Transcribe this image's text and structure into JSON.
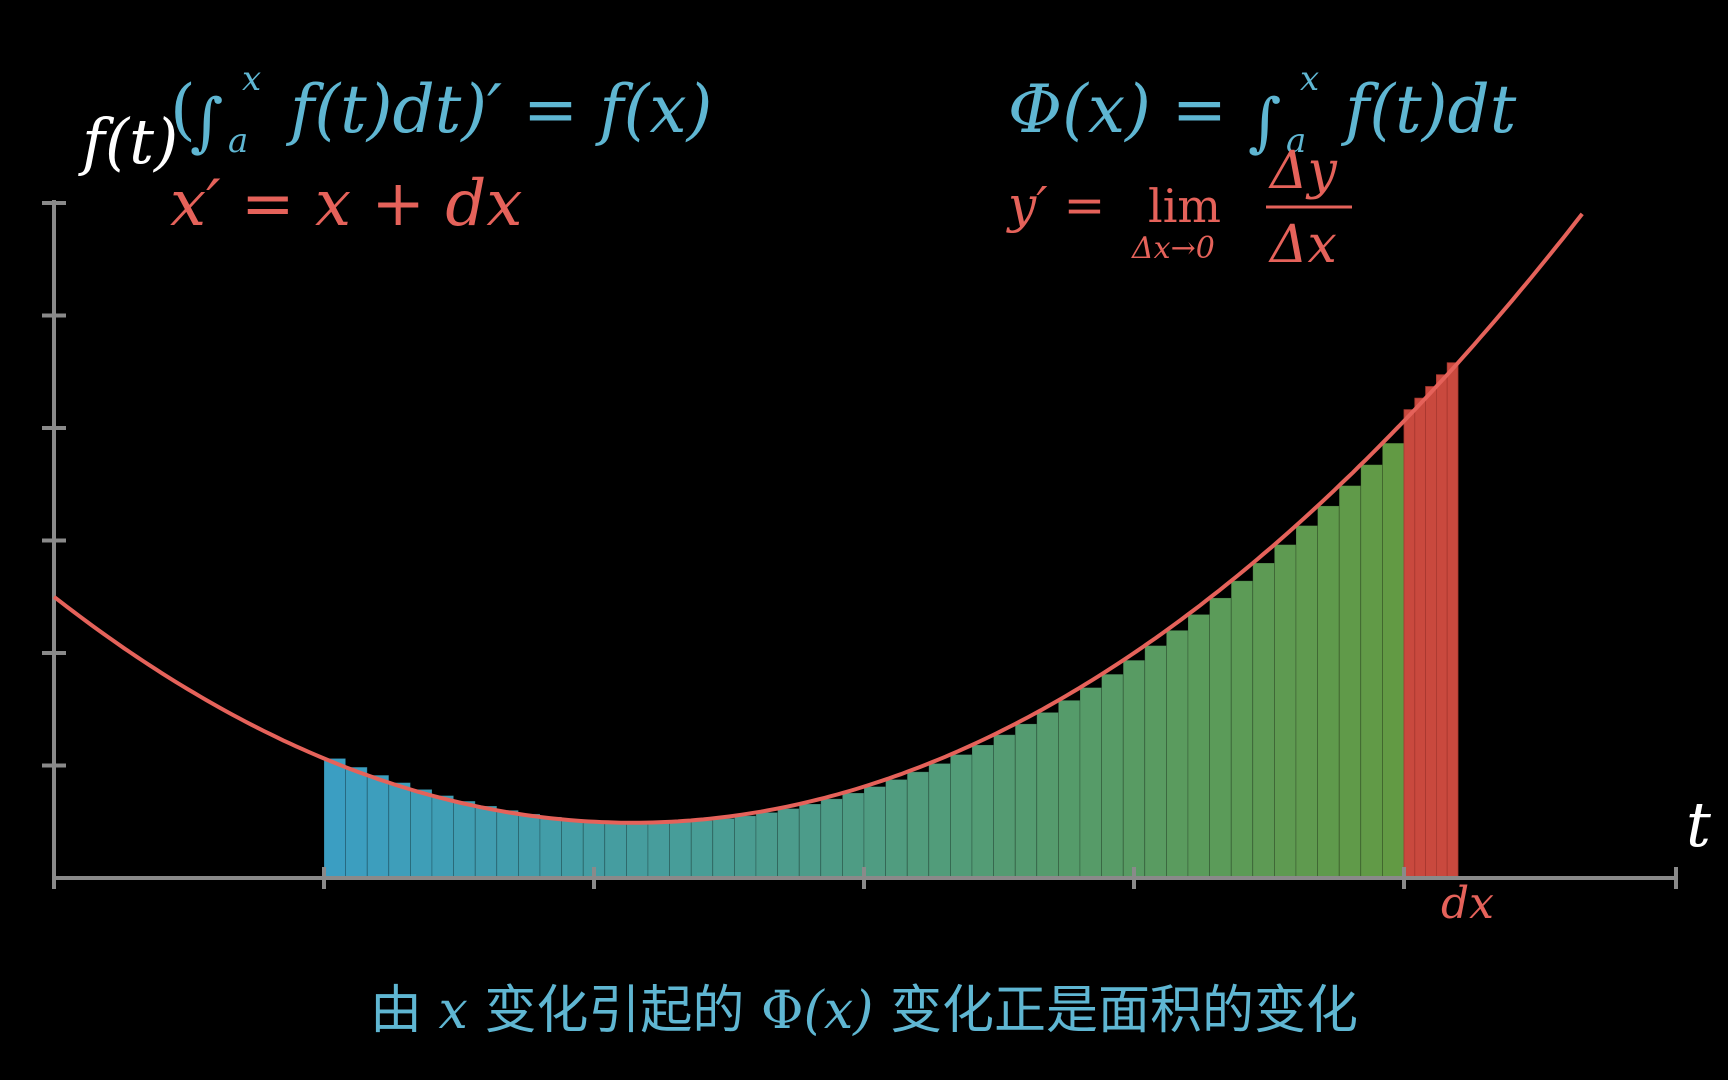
{
  "colors": {
    "background": "#000000",
    "axis": "#8a8a8a",
    "curve": "#e5625a",
    "blue_text": "#5fb6d2",
    "red_text": "#e5625a",
    "white_text": "#ffffff",
    "rect_start": "#3ea6cc",
    "rect_end": "#67a248",
    "dx_rect": "#c9493e"
  },
  "axes": {
    "y_label": "f(t)",
    "x_label": "t",
    "dx_label": "dx"
  },
  "formulas": {
    "ftc": {
      "open_paren": "(",
      "integral": "∫",
      "lower": "a",
      "upper": "x",
      "body": "f(t)dt)′ = f(x)"
    },
    "x_prime": "x′ = x + dx",
    "phi": {
      "lhs": "Φ(x) = ",
      "integral": "∫",
      "lower": "a",
      "upper": "x",
      "body": "f(t)dt"
    },
    "derivative": {
      "lhs": "y′ = ",
      "lim": "lim",
      "lim_sub": "Δx→0",
      "numerator": "Δy",
      "denominator": "Δx"
    }
  },
  "caption": {
    "prefix": "由 ",
    "var_x": "x",
    "middle": " 变化引起的 ",
    "phi": "Φ",
    "phi_arg": "(x)",
    "suffix": " 变化正是面积的变化"
  },
  "chart_data": {
    "type": "area",
    "function": "quadratic",
    "t_ticks": [
      1,
      2,
      3,
      4,
      5,
      6
    ],
    "y_ticks": [
      1,
      2,
      3,
      4,
      5,
      6
    ],
    "t_range": [
      0,
      6
    ],
    "y_range": [
      0,
      6
    ],
    "curve_points": {
      "t": [
        0,
        2,
        6
      ],
      "y": [
        2.5,
        0.5,
        7.0
      ]
    },
    "riemann": {
      "t_start": 1,
      "t_end": 5,
      "rect_count": 50
    },
    "dx_strip": {
      "t_start": 5,
      "t_end": 5.2
    }
  }
}
